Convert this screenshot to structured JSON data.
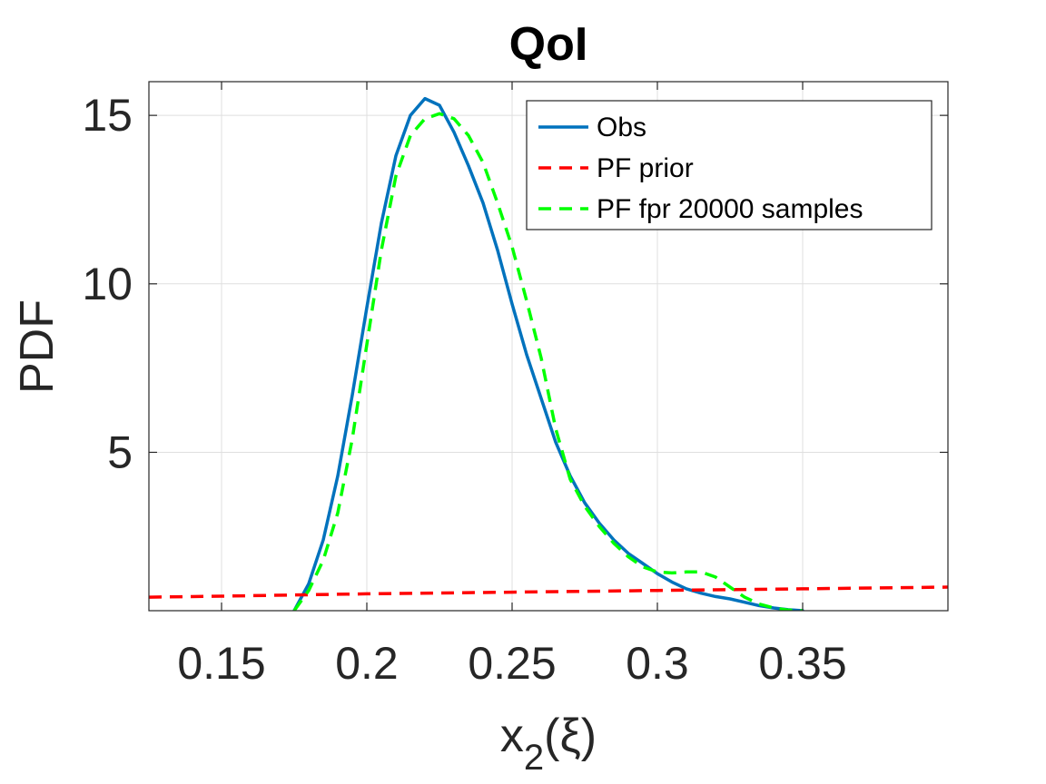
{
  "chart_data": {
    "type": "line",
    "title": "QoI",
    "xlabel": {
      "main": "x",
      "sub": "2",
      "arg": "(ξ)"
    },
    "ylabel": "PDF",
    "xlim": [
      0.125,
      0.4
    ],
    "ylim": [
      0.3,
      16
    ],
    "xticks": [
      0.15,
      0.2,
      0.25,
      0.3,
      0.35
    ],
    "xtick_labels": [
      "0.15",
      "0.2",
      "0.25",
      "0.3",
      "0.35"
    ],
    "yticks": [
      5,
      10,
      15
    ],
    "ytick_labels": [
      "5",
      "10",
      "15"
    ],
    "grid": true,
    "legend_position": "top-right",
    "series": [
      {
        "name": "Obs",
        "color": "#0072BD",
        "style": "solid",
        "points": [
          [
            0.175,
            0.3
          ],
          [
            0.18,
            1.1
          ],
          [
            0.185,
            2.4
          ],
          [
            0.19,
            4.3
          ],
          [
            0.195,
            6.7
          ],
          [
            0.2,
            9.3
          ],
          [
            0.205,
            11.8
          ],
          [
            0.21,
            13.8
          ],
          [
            0.215,
            15.0
          ],
          [
            0.22,
            15.5
          ],
          [
            0.225,
            15.3
          ],
          [
            0.23,
            14.5
          ],
          [
            0.235,
            13.5
          ],
          [
            0.24,
            12.4
          ],
          [
            0.245,
            11.0
          ],
          [
            0.25,
            9.4
          ],
          [
            0.255,
            7.9
          ],
          [
            0.26,
            6.6
          ],
          [
            0.265,
            5.3
          ],
          [
            0.27,
            4.3
          ],
          [
            0.275,
            3.5
          ],
          [
            0.28,
            2.9
          ],
          [
            0.285,
            2.4
          ],
          [
            0.29,
            2.0
          ],
          [
            0.295,
            1.7
          ],
          [
            0.3,
            1.4
          ],
          [
            0.305,
            1.15
          ],
          [
            0.31,
            0.95
          ],
          [
            0.315,
            0.82
          ],
          [
            0.32,
            0.72
          ],
          [
            0.325,
            0.65
          ],
          [
            0.33,
            0.55
          ],
          [
            0.335,
            0.45
          ],
          [
            0.34,
            0.38
          ],
          [
            0.345,
            0.33
          ],
          [
            0.35,
            0.3
          ]
        ]
      },
      {
        "name": "PF prior",
        "color": "#FF0000",
        "style": "dashed",
        "points": [
          [
            0.125,
            0.7
          ],
          [
            0.15,
            0.73
          ],
          [
            0.2,
            0.8
          ],
          [
            0.25,
            0.85
          ],
          [
            0.3,
            0.9
          ],
          [
            0.35,
            0.95
          ],
          [
            0.4,
            1.0
          ]
        ]
      },
      {
        "name": "PF fpr 20000 samples",
        "color": "#00FF00",
        "style": "dashed",
        "points": [
          [
            0.175,
            0.3
          ],
          [
            0.18,
            0.9
          ],
          [
            0.185,
            1.8
          ],
          [
            0.19,
            3.2
          ],
          [
            0.195,
            5.4
          ],
          [
            0.2,
            8.2
          ],
          [
            0.205,
            11.0
          ],
          [
            0.21,
            13.2
          ],
          [
            0.215,
            14.4
          ],
          [
            0.22,
            14.9
          ],
          [
            0.225,
            15.05
          ],
          [
            0.23,
            14.9
          ],
          [
            0.235,
            14.4
          ],
          [
            0.24,
            13.6
          ],
          [
            0.245,
            12.4
          ],
          [
            0.25,
            11.1
          ],
          [
            0.255,
            9.5
          ],
          [
            0.26,
            7.8
          ],
          [
            0.265,
            5.7
          ],
          [
            0.27,
            4.2
          ],
          [
            0.275,
            3.4
          ],
          [
            0.28,
            2.8
          ],
          [
            0.285,
            2.3
          ],
          [
            0.29,
            1.9
          ],
          [
            0.295,
            1.6
          ],
          [
            0.3,
            1.45
          ],
          [
            0.305,
            1.42
          ],
          [
            0.31,
            1.45
          ],
          [
            0.315,
            1.45
          ],
          [
            0.32,
            1.3
          ],
          [
            0.325,
            1.0
          ],
          [
            0.33,
            0.7
          ],
          [
            0.335,
            0.5
          ],
          [
            0.34,
            0.38
          ],
          [
            0.345,
            0.32
          ],
          [
            0.35,
            0.3
          ]
        ]
      }
    ]
  }
}
